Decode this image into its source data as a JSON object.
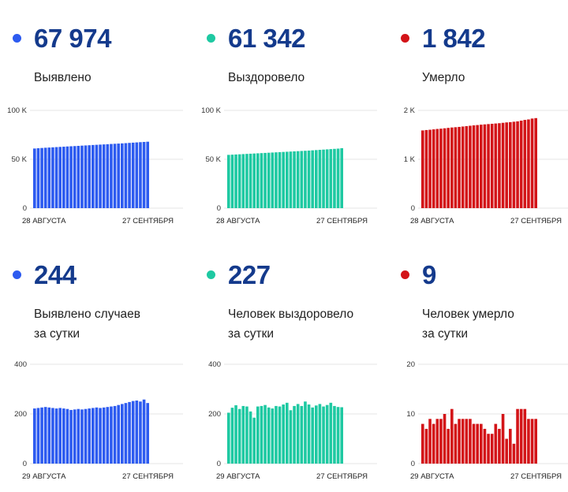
{
  "colors": {
    "blue": "#2d5bf0",
    "green": "#1ec9a2",
    "red": "#d31418",
    "number": "#143a8c"
  },
  "cards": [
    {
      "key": "cum_detected",
      "dot_color": "#2d5bf0",
      "big": "67 974",
      "label_lines": [
        "Выявлено"
      ],
      "icon": "dot-icon"
    },
    {
      "key": "cum_recovered",
      "dot_color": "#1ec9a2",
      "big": "61 342",
      "label_lines": [
        "Выздоровело"
      ],
      "icon": "dot-icon"
    },
    {
      "key": "cum_deaths",
      "dot_color": "#d31418",
      "big": "1 842",
      "label_lines": [
        "Умерло"
      ],
      "icon": "dot-icon"
    },
    {
      "key": "daily_detected",
      "dot_color": "#2d5bf0",
      "big": "244",
      "label_lines": [
        "Выявлено случаев",
        "за сутки"
      ],
      "icon": "dot-icon"
    },
    {
      "key": "daily_recovered",
      "dot_color": "#1ec9a2",
      "big": "227",
      "label_lines": [
        "Человек выздоровело",
        "за сутки"
      ],
      "icon": "dot-icon"
    },
    {
      "key": "daily_deaths",
      "dot_color": "#d31418",
      "big": "9",
      "label_lines": [
        "Человек умерло",
        "за сутки"
      ],
      "icon": "dot-icon"
    }
  ],
  "chart_data": [
    {
      "type": "bar",
      "title": "Выявлено",
      "color": "#2d5bf0",
      "ylim": [
        0,
        100000
      ],
      "yticks": [
        0,
        50000,
        100000
      ],
      "ytick_labels": [
        "0",
        "50 K",
        "100 K"
      ],
      "x_start_label": "28 АВГУСТА",
      "x_end_label": "27 СЕНТЯБРЯ",
      "values": [
        61000,
        61300,
        61550,
        61800,
        62000,
        62200,
        62450,
        62650,
        62850,
        63100,
        63300,
        63500,
        63700,
        63950,
        64150,
        64350,
        64600,
        64800,
        65000,
        65200,
        65400,
        65650,
        65850,
        66050,
        66250,
        66500,
        66750,
        67000,
        67250,
        67500,
        67730,
        67974
      ]
    },
    {
      "type": "bar",
      "title": "Выздоровело",
      "color": "#1ec9a2",
      "ylim": [
        0,
        100000
      ],
      "yticks": [
        0,
        50000,
        100000
      ],
      "ytick_labels": [
        "0",
        "50 K",
        "100 K"
      ],
      "x_start_label": "28 АВГУСТА",
      "x_end_label": "27 СЕНТЯБРЯ",
      "values": [
        54500,
        54700,
        54900,
        55100,
        55300,
        55500,
        55700,
        55900,
        56100,
        56300,
        56500,
        56700,
        56900,
        57100,
        57300,
        57500,
        57700,
        57900,
        58100,
        58300,
        58500,
        58700,
        58900,
        59150,
        59400,
        59650,
        59900,
        60150,
        60400,
        60650,
        60900,
        61342
      ]
    },
    {
      "type": "bar",
      "title": "Умерло",
      "color": "#d31418",
      "ylim": [
        0,
        2000
      ],
      "yticks": [
        0,
        1000,
        2000
      ],
      "ytick_labels": [
        "0",
        "1 K",
        "2 K"
      ],
      "x_start_label": "28 АВГУСТА",
      "x_end_label": "27 СЕНТЯБРЯ",
      "values": [
        1590,
        1598,
        1604,
        1612,
        1620,
        1626,
        1634,
        1642,
        1650,
        1656,
        1662,
        1670,
        1678,
        1686,
        1694,
        1700,
        1708,
        1714,
        1720,
        1726,
        1732,
        1738,
        1746,
        1754,
        1760,
        1768,
        1776,
        1790,
        1805,
        1815,
        1833,
        1842
      ]
    },
    {
      "type": "bar",
      "title": "Выявлено случаев за сутки",
      "color": "#2d5bf0",
      "ylim": [
        0,
        400
      ],
      "yticks": [
        0,
        200,
        400
      ],
      "ytick_labels": [
        "0",
        "200",
        "400"
      ],
      "x_start_label": "29 АВГУСТА",
      "x_end_label": "27 СЕНТЯБРЯ",
      "values": [
        222,
        224,
        226,
        228,
        226,
        224,
        222,
        224,
        222,
        220,
        216,
        218,
        220,
        218,
        220,
        222,
        224,
        226,
        224,
        226,
        228,
        230,
        232,
        236,
        240,
        244,
        248,
        252,
        254,
        250,
        258,
        244
      ]
    },
    {
      "type": "bar",
      "title": "Человек выздоровело за сутки",
      "color": "#1ec9a2",
      "ylim": [
        0,
        400
      ],
      "yticks": [
        0,
        200,
        400
      ],
      "ytick_labels": [
        "0",
        "200",
        "400"
      ],
      "x_start_label": "29 АВГУСТА",
      "x_end_label": "27 СЕНТЯБРЯ",
      "values": [
        205,
        225,
        235,
        220,
        232,
        230,
        210,
        185,
        230,
        232,
        236,
        226,
        222,
        232,
        230,
        238,
        245,
        215,
        232,
        240,
        232,
        250,
        238,
        226,
        234,
        240,
        230,
        236,
        245,
        232,
        228,
        227
      ]
    },
    {
      "type": "bar",
      "title": "Человек умерло за сутки",
      "color": "#d31418",
      "ylim": [
        0,
        20
      ],
      "yticks": [
        0,
        10,
        20
      ],
      "ytick_labels": [
        "0",
        "10",
        "20"
      ],
      "x_start_label": "29 АВГУСТА",
      "x_end_label": "27 СЕНТЯБРЯ",
      "values": [
        8,
        7,
        9,
        8,
        9,
        9,
        10,
        7,
        11,
        8,
        9,
        9,
        9,
        9,
        8,
        8,
        8,
        7,
        6,
        6,
        8,
        7,
        10,
        5,
        7,
        4,
        11,
        11,
        11,
        9,
        9,
        9
      ]
    }
  ]
}
